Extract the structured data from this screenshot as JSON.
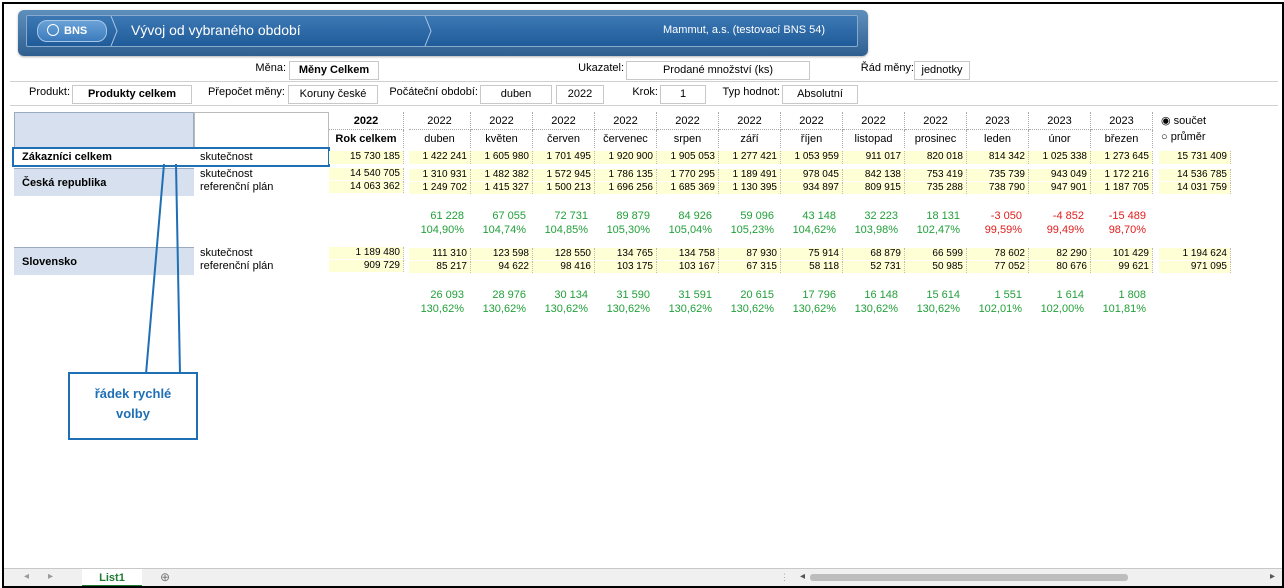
{
  "banner": {
    "brand": "BNS",
    "title": "Vývoj od vybraného období",
    "org": "Mammut, a.s. (testovací BNS 54)"
  },
  "filters": {
    "mena_label": "Měna:",
    "mena_value": "Měny Celkem",
    "ukazatel_label": "Ukazatel:",
    "ukazatel_value": "Prodané množství (ks)",
    "rad_label": "Řád měny:",
    "rad_value": "jednotky",
    "produkt_label": "Produkt:",
    "produkt_value": "Produkty celkem",
    "prepocet_label": "Přepočet měny:",
    "prepocet_value": "Koruny české",
    "pocatecni_label": "Počáteční období:",
    "pocatecni_month": "duben",
    "pocatecni_year": "2022",
    "krok_label": "Krok:",
    "krok_value": "1",
    "typ_label": "Typ hodnot:",
    "typ_value": "Absolutní"
  },
  "table": {
    "total_header": {
      "year": "2022",
      "label": "Rok celkem"
    },
    "periods": [
      {
        "y": "2022",
        "m": "duben"
      },
      {
        "y": "2022",
        "m": "květen"
      },
      {
        "y": "2022",
        "m": "červen"
      },
      {
        "y": "2022",
        "m": "červenec"
      },
      {
        "y": "2022",
        "m": "srpen"
      },
      {
        "y": "2022",
        "m": "září"
      },
      {
        "y": "2022",
        "m": "říjen"
      },
      {
        "y": "2022",
        "m": "listopad"
      },
      {
        "y": "2022",
        "m": "prosinec"
      },
      {
        "y": "2023",
        "m": "leden"
      },
      {
        "y": "2023",
        "m": "únor"
      },
      {
        "y": "2023",
        "m": "březen"
      }
    ],
    "radio": {
      "sum": "součet",
      "avg": "průměr"
    },
    "quick": {
      "name": "Zákazníci celkem",
      "type": "skutečnost",
      "total": "15 730 185",
      "values": [
        "1 422 241",
        "1 605 980",
        "1 701 495",
        "1 920 900",
        "1 905 053",
        "1 277 421",
        "1 053 959",
        "911 017",
        "820 018",
        "814 342",
        "1 025 338",
        "1 273 645"
      ],
      "sum": "15 731 409"
    },
    "groups": [
      {
        "name": "Česká republika",
        "rows": [
          {
            "type": "skutečnost",
            "total": "14 540 705",
            "values": [
              "1 310 931",
              "1 482 382",
              "1 572 945",
              "1 786 135",
              "1 770 295",
              "1 189 491",
              "978 045",
              "842 138",
              "753 419",
              "735 739",
              "943 049",
              "1 172 216"
            ],
            "sum": "14 536 785"
          },
          {
            "type": "referenční plán",
            "total": "14 063 362",
            "values": [
              "1 249 702",
              "1 415 327",
              "1 500 213",
              "1 696 256",
              "1 685 369",
              "1 130 395",
              "934 897",
              "809 915",
              "735 288",
              "738 790",
              "947 901",
              "1 187 705"
            ],
            "sum": "14 031 759"
          }
        ],
        "diff": [
          "61 228",
          "67 055",
          "72 731",
          "89 879",
          "84 926",
          "59 096",
          "43 148",
          "32 223",
          "18 131",
          "-3 050",
          "-4 852",
          "-15 489"
        ],
        "pct": [
          "104,90%",
          "104,74%",
          "104,85%",
          "105,30%",
          "105,04%",
          "105,23%",
          "104,62%",
          "103,98%",
          "102,47%",
          "99,59%",
          "99,49%",
          "98,70%"
        ]
      },
      {
        "name": "Slovensko",
        "rows": [
          {
            "type": "skutečnost",
            "total": "1 189 480",
            "values": [
              "111 310",
              "123 598",
              "128 550",
              "134 765",
              "134 758",
              "87 930",
              "75 914",
              "68 879",
              "66 599",
              "78 602",
              "82 290",
              "101 429"
            ],
            "sum": "1 194 624"
          },
          {
            "type": "referenční plán",
            "total": "909 729",
            "values": [
              "85 217",
              "94 622",
              "98 416",
              "103 175",
              "103 167",
              "67 315",
              "58 118",
              "52 731",
              "50 985",
              "77 052",
              "80 676",
              "99 621"
            ],
            "sum": "971 095"
          }
        ],
        "diff": [
          "26 093",
          "28 976",
          "30 134",
          "31 590",
          "31 591",
          "20 615",
          "17 796",
          "16 148",
          "15 614",
          "1 551",
          "1 614",
          "1 808"
        ],
        "pct": [
          "130,62%",
          "130,62%",
          "130,62%",
          "130,62%",
          "130,62%",
          "130,62%",
          "130,62%",
          "130,62%",
          "130,62%",
          "102,01%",
          "102,00%",
          "101,81%"
        ]
      }
    ]
  },
  "callout": {
    "line1": "řádek rychlé",
    "line2": "volby"
  },
  "sheet": {
    "tab": "List1"
  },
  "colors": {
    "positive": "#22a03a",
    "negative": "#e11d1d",
    "accent": "#1f6fb5"
  }
}
